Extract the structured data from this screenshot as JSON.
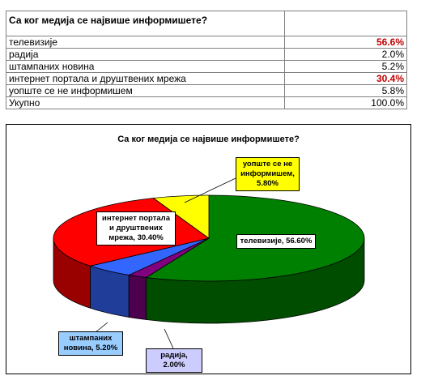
{
  "table": {
    "header": "Са ког медија се највише информишете?",
    "rows": [
      {
        "label": "телевизије",
        "value": "56.6%",
        "highlight": true
      },
      {
        "label": "радија",
        "value": "2.0%",
        "highlight": false
      },
      {
        "label": "штампаних новина",
        "value": "5.2%",
        "highlight": false
      },
      {
        "label": "интернет портала и друштвених мрежа",
        "value": "30.4%",
        "highlight": true
      },
      {
        "label": "уопште се не информишем",
        "value": "5.8%",
        "highlight": false
      },
      {
        "label": "Укупно",
        "value": "100.0%",
        "highlight": false
      }
    ]
  },
  "chart_data": {
    "type": "pie",
    "title": "Са ког медија се највише информишете?",
    "categories": [
      "телевизије",
      "радија",
      "штампаних новина",
      "интернет портала и друштвених мрежа",
      "уопште се не информишем"
    ],
    "values": [
      56.6,
      2.0,
      5.2,
      30.4,
      5.8
    ],
    "data_labels": [
      "телевизије, 56.60%",
      "радија, 2.00%",
      "штампаних новина, 5.20%",
      "интернет портала и друштвених мрежа, 30.40%",
      "уопште се не информишем, 5.80%"
    ],
    "colors": [
      "#008000",
      "#800080",
      "#3366ff",
      "#ff0000",
      "#ffff00"
    ],
    "side_colors": [
      "#004d00",
      "#4d004d",
      "#1f3d99",
      "#990000",
      "#999900"
    ],
    "label_backgrounds": [
      "#ffffff",
      "#ccccff",
      "#99ccff",
      "#ffffff",
      "#ffff00"
    ]
  }
}
